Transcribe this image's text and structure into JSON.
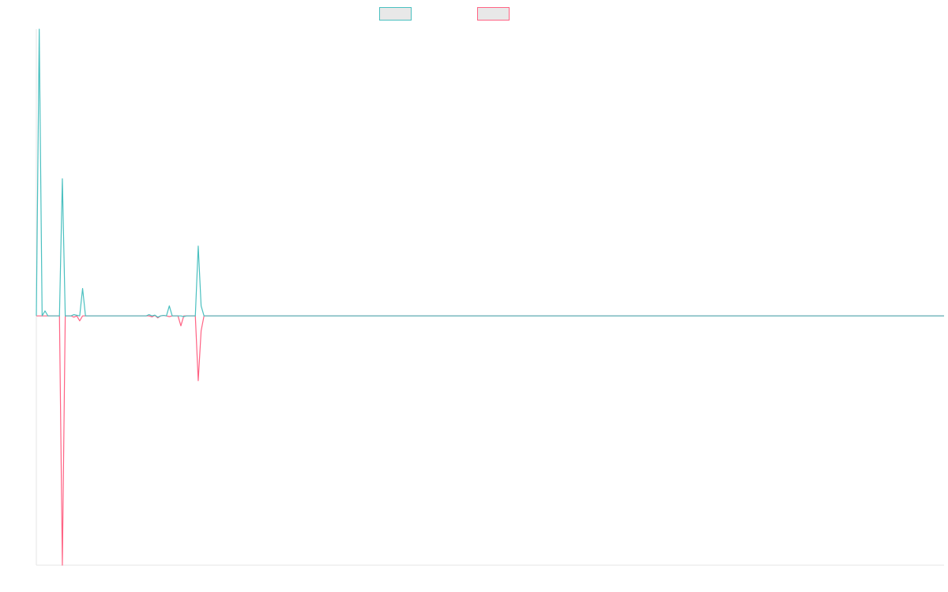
{
  "chart_data": {
    "type": "line",
    "title": "",
    "xlabel": "",
    "ylabel": "",
    "grid": false,
    "legend_position": "top",
    "x_count": 315,
    "ylim": [
      -1,
      1.15
    ],
    "series": [
      {
        "color": "#4bc0c0",
        "points": [
          [
            0,
            0
          ],
          [
            1,
            1.15
          ],
          [
            2,
            0
          ],
          [
            3,
            0.02
          ],
          [
            4,
            0
          ],
          [
            8,
            0
          ],
          [
            9,
            0.55
          ],
          [
            10,
            0
          ],
          [
            12,
            0
          ],
          [
            13,
            0.005
          ],
          [
            15,
            0
          ],
          [
            16,
            0.11
          ],
          [
            17,
            0
          ],
          [
            38,
            0
          ],
          [
            39,
            0.005
          ],
          [
            40,
            0
          ],
          [
            41,
            0.003
          ],
          [
            42,
            -0.005
          ],
          [
            43,
            0
          ],
          [
            44,
            0.002
          ],
          [
            45,
            0
          ],
          [
            46,
            0.04
          ],
          [
            47,
            0
          ],
          [
            50,
            0
          ],
          [
            51,
            -0.003
          ],
          [
            52,
            0
          ],
          [
            55,
            0
          ],
          [
            56,
            0.28
          ],
          [
            57,
            0.04
          ],
          [
            58,
            0
          ],
          [
            314,
            0
          ]
        ]
      },
      {
        "color": "#ff6384",
        "points": [
          [
            0,
            0
          ],
          [
            8,
            0
          ],
          [
            9,
            -1.0
          ],
          [
            10,
            0
          ],
          [
            12,
            0
          ],
          [
            13,
            -0.005
          ],
          [
            14,
            0
          ],
          [
            15,
            -0.02
          ],
          [
            16,
            0
          ],
          [
            39,
            0
          ],
          [
            40,
            -0.004
          ],
          [
            41,
            0.002
          ],
          [
            42,
            -0.008
          ],
          [
            43,
            0
          ],
          [
            44,
            0.002
          ],
          [
            45,
            0
          ],
          [
            46,
            -0.003
          ],
          [
            47,
            0
          ],
          [
            49,
            0
          ],
          [
            50,
            -0.04
          ],
          [
            51,
            0
          ],
          [
            55,
            0
          ],
          [
            56,
            -0.26
          ],
          [
            57,
            -0.06
          ],
          [
            58,
            0
          ],
          [
            314,
            0
          ]
        ]
      }
    ]
  }
}
